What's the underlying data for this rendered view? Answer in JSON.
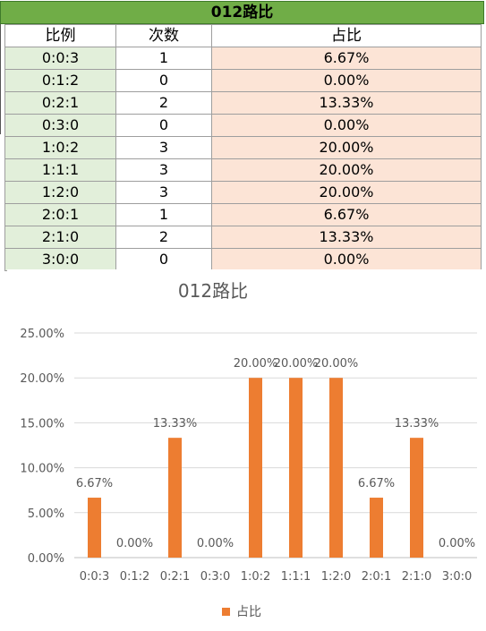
{
  "table": {
    "title": "012路比",
    "headers": [
      "比例",
      "次数",
      "占比"
    ],
    "rows": [
      {
        "ratio": "0:0:3",
        "count": "1",
        "pct": "6.67%"
      },
      {
        "ratio": "0:1:2",
        "count": "0",
        "pct": "0.00%"
      },
      {
        "ratio": "0:2:1",
        "count": "2",
        "pct": "13.33%"
      },
      {
        "ratio": "0:3:0",
        "count": "0",
        "pct": "0.00%"
      },
      {
        "ratio": "1:0:2",
        "count": "3",
        "pct": "20.00%"
      },
      {
        "ratio": "1:1:1",
        "count": "3",
        "pct": "20.00%"
      },
      {
        "ratio": "1:2:0",
        "count": "3",
        "pct": "20.00%"
      },
      {
        "ratio": "2:0:1",
        "count": "1",
        "pct": "6.67%"
      },
      {
        "ratio": "2:1:0",
        "count": "2",
        "pct": "13.33%"
      },
      {
        "ratio": "3:0:0",
        "count": "0",
        "pct": "0.00%"
      }
    ]
  },
  "colors": {
    "title_bar": "#70ad47",
    "ratio_col": "#e2efda",
    "pct_col": "#fce4d6",
    "bar": "#ed7d31",
    "axis_text": "#595959",
    "gridline": "#d9d9d9"
  },
  "chart_data": {
    "type": "bar",
    "title": "012路比",
    "categories": [
      "0:0:3",
      "0:1:2",
      "0:2:1",
      "0:3:0",
      "1:0:2",
      "1:1:1",
      "1:2:0",
      "2:0:1",
      "2:1:0",
      "3:0:0"
    ],
    "series": [
      {
        "name": "占比",
        "values": [
          6.67,
          0,
          13.33,
          0,
          20,
          20,
          20,
          6.67,
          13.33,
          0
        ]
      }
    ],
    "data_labels": [
      "6.67%",
      "0.00%",
      "13.33%",
      "0.00%",
      "20.00%",
      "20.00%",
      "20.00%",
      "6.67%",
      "13.33%",
      "0.00%"
    ],
    "y_ticks": [
      "0.00%",
      "5.00%",
      "10.00%",
      "15.00%",
      "20.00%",
      "25.00%"
    ],
    "ylim": [
      0,
      25
    ],
    "xlabel": "",
    "ylabel": "",
    "grid": true,
    "legend": "bottom"
  }
}
